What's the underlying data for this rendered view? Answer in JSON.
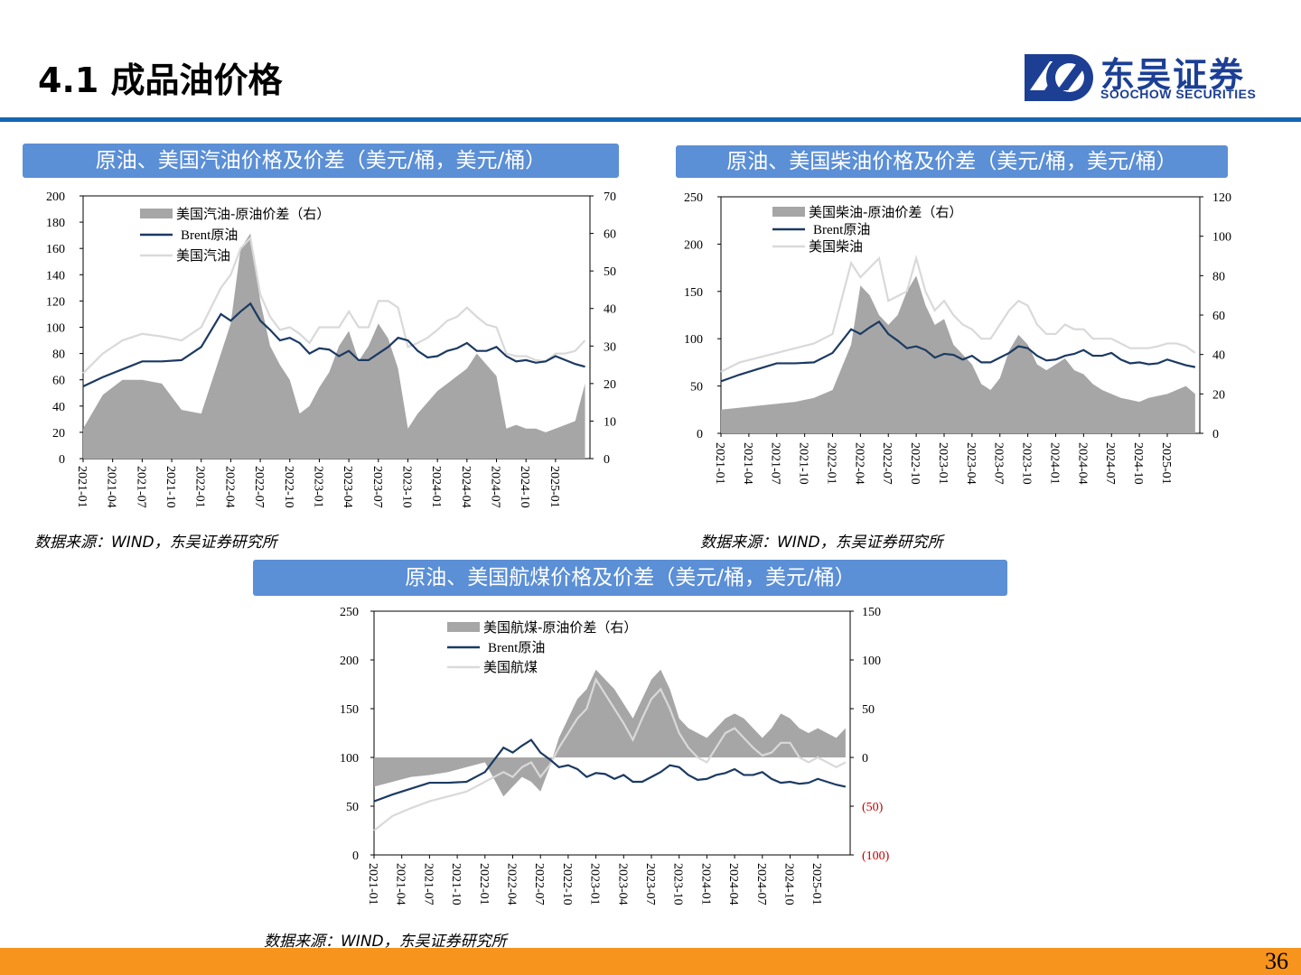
{
  "page": {
    "title": "4.1 成品油价格",
    "page_number": "36",
    "logo_cn": "东吴证券",
    "logo_en": "SOOCHOW SECURITIES"
  },
  "colors": {
    "accent_blue": "#1766b3",
    "panel_blue": "#5b8fd6",
    "footer_orange": "#f7941d",
    "brent_line": "#1b3a63",
    "product_line": "#d9d9d9",
    "spread_area": "#a6a6a6",
    "negative_label": "#c00000"
  },
  "panels": [
    {
      "title": "原油、美国汽油价格及价差（美元/桶，美元/桶）",
      "source": "数据来源：WIND，东吴证券研究所"
    },
    {
      "title": "原油、美国柴油价格及价差（美元/桶，美元/桶）",
      "source": "数据来源：WIND，东吴证券研究所"
    },
    {
      "title": "原油、美国航煤价格及价差（美元/桶，美元/桶）",
      "source": "数据来源：WIND，东吴证券研究所"
    }
  ],
  "chart_data": [
    {
      "type": "area",
      "title": "原油、美国汽油价格及价差（美元/桶，美元/桶）",
      "x_tick_labels": [
        "2021-01",
        "2021-04",
        "2021-07",
        "2021-10",
        "2022-01",
        "2022-04",
        "2022-07",
        "2022-10",
        "2023-01",
        "2023-04",
        "2023-07",
        "2023-10",
        "2024-01",
        "2024-04",
        "2024-07",
        "2024-10",
        "2025-01"
      ],
      "x": [
        "2021-01",
        "2021-03",
        "2021-05",
        "2021-07",
        "2021-09",
        "2021-11",
        "2022-01",
        "2022-03",
        "2022-04",
        "2022-05",
        "2022-06",
        "2022-07",
        "2022-08",
        "2022-09",
        "2022-10",
        "2022-11",
        "2022-12",
        "2023-01",
        "2023-02",
        "2023-03",
        "2023-04",
        "2023-05",
        "2023-06",
        "2023-07",
        "2023-08",
        "2023-09",
        "2023-10",
        "2023-11",
        "2023-12",
        "2024-01",
        "2024-02",
        "2024-03",
        "2024-04",
        "2024-05",
        "2024-06",
        "2024-07",
        "2024-08",
        "2024-09",
        "2024-10",
        "2024-11",
        "2024-12",
        "2025-01",
        "2025-02",
        "2025-03",
        "2025-04"
      ],
      "y_left_range": [
        0,
        200
      ],
      "y_left_ticks": [
        "200",
        "180",
        "160",
        "140",
        "120",
        "100",
        "80",
        "60",
        "40",
        "20",
        "0"
      ],
      "y_right_range": [
        0,
        70
      ],
      "y_right_ticks": [
        "70",
        "60",
        "50",
        "40",
        "30",
        "20",
        "10",
        "0"
      ],
      "legend": [
        "美国汽油-原油价差（右）",
        "Brent原油",
        "美国汽油"
      ],
      "series": [
        {
          "name": "美国汽油-原油价差（右）",
          "axis": "right",
          "kind": "area",
          "values": [
            8,
            17,
            21,
            21,
            20,
            13,
            12,
            28,
            36,
            56,
            60,
            42,
            30,
            25,
            21,
            12,
            14,
            19,
            23,
            30,
            34,
            26,
            30,
            36,
            32,
            24,
            8,
            12,
            15,
            18,
            20,
            22,
            24,
            28,
            25,
            22,
            8,
            9,
            8,
            8,
            7,
            8,
            9,
            10,
            20
          ]
        },
        {
          "name": "Brent原油",
          "axis": "left",
          "kind": "line",
          "values": [
            55,
            62,
            68,
            74,
            74,
            75,
            85,
            110,
            105,
            112,
            118,
            105,
            98,
            90,
            92,
            88,
            80,
            84,
            83,
            78,
            82,
            75,
            75,
            80,
            85,
            92,
            90,
            82,
            77,
            78,
            82,
            84,
            88,
            82,
            82,
            85,
            78,
            74,
            75,
            73,
            74,
            78,
            75,
            72,
            70
          ]
        },
        {
          "name": "美国汽油",
          "axis": "left",
          "kind": "line",
          "values": [
            65,
            80,
            90,
            95,
            93,
            90,
            100,
            130,
            140,
            160,
            168,
            125,
            108,
            98,
            100,
            95,
            88,
            100,
            100,
            100,
            112,
            100,
            100,
            120,
            120,
            115,
            85,
            88,
            92,
            98,
            105,
            108,
            115,
            108,
            102,
            100,
            80,
            78,
            78,
            75,
            74,
            80,
            80,
            82,
            90
          ]
        }
      ]
    },
    {
      "type": "area",
      "title": "原油、美国柴油价格及价差（美元/桶，美元/桶）",
      "x_tick_labels": [
        "2021-01",
        "2021-04",
        "2021-07",
        "2021-10",
        "2022-01",
        "2022-04",
        "2022-07",
        "2022-10",
        "2023-01",
        "2023-04",
        "2023-07",
        "2023-10",
        "2024-01",
        "2024-04",
        "2024-07",
        "2024-10",
        "2025-01"
      ],
      "x": [
        "2021-01",
        "2021-03",
        "2021-05",
        "2021-07",
        "2021-09",
        "2021-11",
        "2022-01",
        "2022-03",
        "2022-04",
        "2022-05",
        "2022-06",
        "2022-07",
        "2022-08",
        "2022-09",
        "2022-10",
        "2022-11",
        "2022-12",
        "2023-01",
        "2023-02",
        "2023-03",
        "2023-04",
        "2023-05",
        "2023-06",
        "2023-07",
        "2023-08",
        "2023-09",
        "2023-10",
        "2023-11",
        "2023-12",
        "2024-01",
        "2024-02",
        "2024-03",
        "2024-04",
        "2024-05",
        "2024-06",
        "2024-07",
        "2024-08",
        "2024-09",
        "2024-10",
        "2024-11",
        "2024-12",
        "2025-01",
        "2025-02",
        "2025-03",
        "2025-04"
      ],
      "y_left_range": [
        0,
        250
      ],
      "y_left_ticks": [
        "250",
        "200",
        "150",
        "100",
        "50",
        "0"
      ],
      "y_right_range": [
        0,
        120
      ],
      "y_right_ticks": [
        "120",
        "100",
        "80",
        "60",
        "40",
        "20",
        "0"
      ],
      "legend": [
        "美国柴油-原油价差（右）",
        "Brent原油",
        "美国柴油"
      ],
      "series": [
        {
          "name": "美国柴油-原油价差（右）",
          "axis": "right",
          "kind": "area",
          "values": [
            12,
            13,
            14,
            15,
            16,
            18,
            22,
            45,
            75,
            70,
            60,
            55,
            60,
            72,
            80,
            65,
            55,
            58,
            45,
            40,
            35,
            25,
            22,
            28,
            42,
            50,
            45,
            35,
            32,
            35,
            38,
            32,
            30,
            25,
            22,
            20,
            18,
            17,
            16,
            18,
            19,
            20,
            22,
            24,
            20
          ]
        },
        {
          "name": "Brent原油",
          "axis": "left",
          "kind": "line",
          "values": [
            55,
            62,
            68,
            74,
            74,
            75,
            85,
            110,
            105,
            112,
            118,
            105,
            98,
            90,
            92,
            88,
            80,
            84,
            83,
            78,
            82,
            75,
            75,
            80,
            85,
            92,
            90,
            82,
            77,
            78,
            82,
            84,
            88,
            82,
            82,
            85,
            78,
            74,
            75,
            73,
            74,
            78,
            75,
            72,
            70
          ]
        },
        {
          "name": "美国柴油",
          "axis": "left",
          "kind": "line",
          "values": [
            65,
            75,
            80,
            85,
            90,
            95,
            105,
            180,
            165,
            175,
            185,
            140,
            145,
            150,
            185,
            150,
            130,
            140,
            125,
            115,
            110,
            100,
            100,
            115,
            130,
            140,
            135,
            115,
            105,
            105,
            115,
            110,
            110,
            100,
            100,
            100,
            95,
            90,
            90,
            90,
            92,
            95,
            95,
            92,
            85
          ]
        }
      ]
    },
    {
      "type": "area",
      "title": "原油、美国航煤价格及价差（美元/桶，美元/桶）",
      "x_tick_labels": [
        "2021-01",
        "2021-04",
        "2021-07",
        "2021-10",
        "2022-01",
        "2022-04",
        "2022-07",
        "2022-10",
        "2023-01",
        "2023-04",
        "2023-07",
        "2023-10",
        "2024-01",
        "2024-04",
        "2024-07",
        "2024-10",
        "2025-01"
      ],
      "x": [
        "2021-01",
        "2021-03",
        "2021-05",
        "2021-07",
        "2021-09",
        "2021-11",
        "2022-01",
        "2022-03",
        "2022-04",
        "2022-05",
        "2022-06",
        "2022-07",
        "2022-08",
        "2022-09",
        "2022-10",
        "2022-11",
        "2022-12",
        "2023-01",
        "2023-02",
        "2023-03",
        "2023-04",
        "2023-05",
        "2023-06",
        "2023-07",
        "2023-08",
        "2023-09",
        "2023-10",
        "2023-11",
        "2023-12",
        "2024-01",
        "2024-02",
        "2024-03",
        "2024-04",
        "2024-05",
        "2024-06",
        "2024-07",
        "2024-08",
        "2024-09",
        "2024-10",
        "2024-11",
        "2024-12",
        "2025-01",
        "2025-02",
        "2025-03",
        "2025-04"
      ],
      "y_left_range": [
        0,
        250
      ],
      "y_left_ticks": [
        "250",
        "200",
        "150",
        "100",
        "50",
        "0"
      ],
      "y_right_range": [
        -100,
        150
      ],
      "y_right_ticks": [
        "150",
        "100",
        "50",
        "0",
        "(50)",
        "(100)"
      ],
      "legend": [
        "美国航煤-原油价差（右）",
        "Brent原油",
        "美国航煤"
      ],
      "series": [
        {
          "name": "美国航煤-原油价差（右）",
          "axis": "right",
          "kind": "area",
          "values": [
            -30,
            -25,
            -20,
            -18,
            -15,
            -10,
            -5,
            -40,
            -30,
            -20,
            -25,
            -35,
            -10,
            20,
            40,
            60,
            70,
            90,
            80,
            70,
            55,
            40,
            60,
            80,
            90,
            70,
            40,
            30,
            25,
            20,
            30,
            40,
            45,
            40,
            30,
            20,
            30,
            45,
            40,
            30,
            25,
            30,
            25,
            20,
            30
          ]
        },
        {
          "name": "Brent原油",
          "axis": "left",
          "kind": "line",
          "values": [
            55,
            62,
            68,
            74,
            74,
            75,
            85,
            110,
            105,
            112,
            118,
            105,
            98,
            90,
            92,
            88,
            80,
            84,
            83,
            78,
            82,
            75,
            75,
            80,
            85,
            92,
            90,
            82,
            77,
            78,
            82,
            84,
            88,
            82,
            82,
            85,
            78,
            74,
            75,
            73,
            74,
            78,
            75,
            72,
            70
          ]
        },
        {
          "name": "美国航煤",
          "axis": "left",
          "kind": "line",
          "values": [
            25,
            40,
            48,
            55,
            60,
            65,
            75,
            85,
            80,
            90,
            95,
            80,
            92,
            110,
            125,
            140,
            150,
            180,
            165,
            150,
            135,
            118,
            140,
            160,
            170,
            150,
            125,
            110,
            100,
            95,
            110,
            125,
            130,
            120,
            110,
            102,
            105,
            115,
            115,
            100,
            95,
            100,
            95,
            90,
            95
          ]
        }
      ]
    }
  ]
}
